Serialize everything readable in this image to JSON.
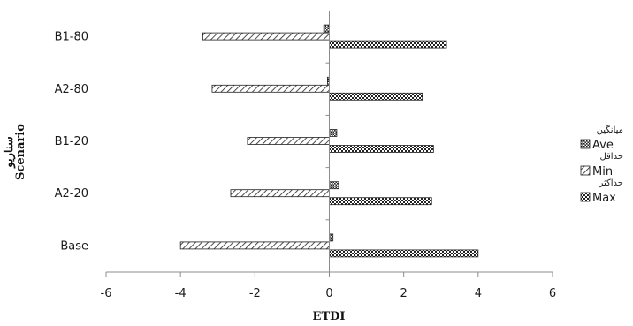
{
  "chart_data": {
    "type": "bar",
    "orientation": "horizontal",
    "categories": [
      "Base",
      "A2-20",
      "B1-20",
      "A2-80",
      "B1-80"
    ],
    "series": [
      {
        "name": "Ave",
        "name_alt": "میانگین",
        "pattern": "dense-dots",
        "values": [
          0.1,
          0.25,
          0.2,
          -0.05,
          -0.15
        ]
      },
      {
        "name": "Min",
        "name_alt": "حداقل",
        "pattern": "diagonal-hatch",
        "values": [
          -4.0,
          -2.65,
          -2.2,
          -3.15,
          -3.4
        ]
      },
      {
        "name": "Max",
        "name_alt": "حداکثر",
        "pattern": "cross-dots",
        "values": [
          4.0,
          2.75,
          2.8,
          2.5,
          3.15
        ]
      }
    ],
    "xlabel": "ETDI",
    "ylabel": "Scenario",
    "ylabel_alt": "سناریو",
    "xlim": [
      -6,
      6
    ],
    "xticks": [
      -6,
      -4,
      -2,
      0,
      2,
      4,
      6
    ],
    "grid": false,
    "legend_position": "right"
  }
}
